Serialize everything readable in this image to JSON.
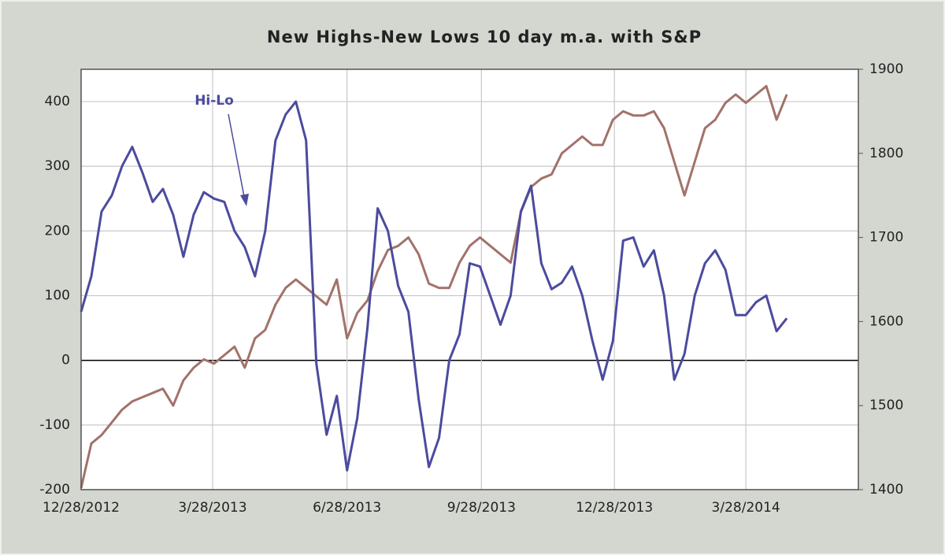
{
  "chart_data": {
    "type": "line",
    "title": "New Highs-New Lows 10 day m.a. with S&P",
    "annotation": "Hi-Lo",
    "x": [
      "12/28/2012",
      "1/4/2013",
      "1/11/2013",
      "1/18/2013",
      "1/25/2013",
      "2/1/2013",
      "2/8/2013",
      "2/15/2013",
      "2/22/2013",
      "3/1/2013",
      "3/8/2013",
      "3/15/2013",
      "3/22/2013",
      "3/29/2013",
      "4/5/2013",
      "4/12/2013",
      "4/19/2013",
      "4/26/2013",
      "5/3/2013",
      "5/10/2013",
      "5/17/2013",
      "5/24/2013",
      "5/31/2013",
      "6/7/2013",
      "6/14/2013",
      "6/21/2013",
      "6/28/2013",
      "7/5/2013",
      "7/12/2013",
      "7/19/2013",
      "7/26/2013",
      "8/2/2013",
      "8/9/2013",
      "8/16/2013",
      "8/23/2013",
      "8/30/2013",
      "9/6/2013",
      "9/13/2013",
      "9/20/2013",
      "9/27/2013",
      "10/4/2013",
      "10/11/2013",
      "10/18/2013",
      "10/25/2013",
      "11/1/2013",
      "11/8/2013",
      "11/15/2013",
      "11/22/2013",
      "11/29/2013",
      "12/6/2013",
      "12/13/2013",
      "12/20/2013",
      "12/27/2013",
      "1/3/2014",
      "1/10/2014",
      "1/17/2014",
      "1/24/2014",
      "1/31/2014",
      "2/7/2014",
      "2/14/2014",
      "2/21/2014",
      "2/28/2014",
      "3/7/2014",
      "3/14/2014",
      "3/21/2014",
      "3/28/2014",
      "4/4/2014",
      "4/11/2014",
      "4/18/2014",
      "4/25/2014"
    ],
    "series": [
      {
        "name": "Hi-Lo",
        "color": "#4b4b9e",
        "axis": "y",
        "values": [
          75,
          130,
          230,
          255,
          300,
          330,
          290,
          245,
          265,
          225,
          160,
          225,
          260,
          250,
          245,
          200,
          175,
          130,
          200,
          340,
          380,
          400,
          340,
          -5,
          -115,
          -55,
          -170,
          -90,
          50,
          235,
          200,
          115,
          75,
          -60,
          -165,
          -120,
          0,
          40,
          150,
          145,
          100,
          55,
          100,
          230,
          270,
          150,
          110,
          120,
          145,
          100,
          30,
          -30,
          30,
          185,
          190,
          145,
          170,
          100,
          -30,
          10,
          100,
          150,
          170,
          140,
          70,
          70,
          90,
          100,
          45,
          65
        ]
      },
      {
        "color": "#a2726a",
        "axis": "y2",
        "values": [
          1402,
          1455,
          1465,
          1480,
          1495,
          1505,
          1510,
          1515,
          1520,
          1500,
          1530,
          1545,
          1555,
          1550,
          1560,
          1570,
          1545,
          1580,
          1590,
          1620,
          1640,
          1650,
          1640,
          1630,
          1620,
          1650,
          1580,
          1610,
          1625,
          1660,
          1685,
          1690,
          1700,
          1680,
          1645,
          1640,
          1640,
          1670,
          1690,
          1700,
          1690,
          1680,
          1670,
          1730,
          1760,
          1770,
          1775,
          1800,
          1810,
          1820,
          1810,
          1810,
          1840,
          1850,
          1845,
          1845,
          1850,
          1830,
          1790,
          1750,
          1790,
          1830,
          1840,
          1860,
          1870,
          1860,
          1870,
          1880,
          1840,
          1870
        ]
      }
    ],
    "xlim": [
      "12/28/2012",
      "6/13/2014"
    ],
    "xticks": [
      "12/28/2012",
      "3/28/2013",
      "6/28/2013",
      "9/28/2013",
      "12/28/2013",
      "3/28/2014"
    ],
    "ylim": [
      -200,
      450
    ],
    "yticks": [
      -200,
      -100,
      0,
      100,
      200,
      300,
      400
    ],
    "y2lim": [
      1400,
      1900
    ],
    "y2ticks": [
      1400,
      1500,
      1600,
      1700,
      1800,
      1900
    ],
    "grid": true
  }
}
